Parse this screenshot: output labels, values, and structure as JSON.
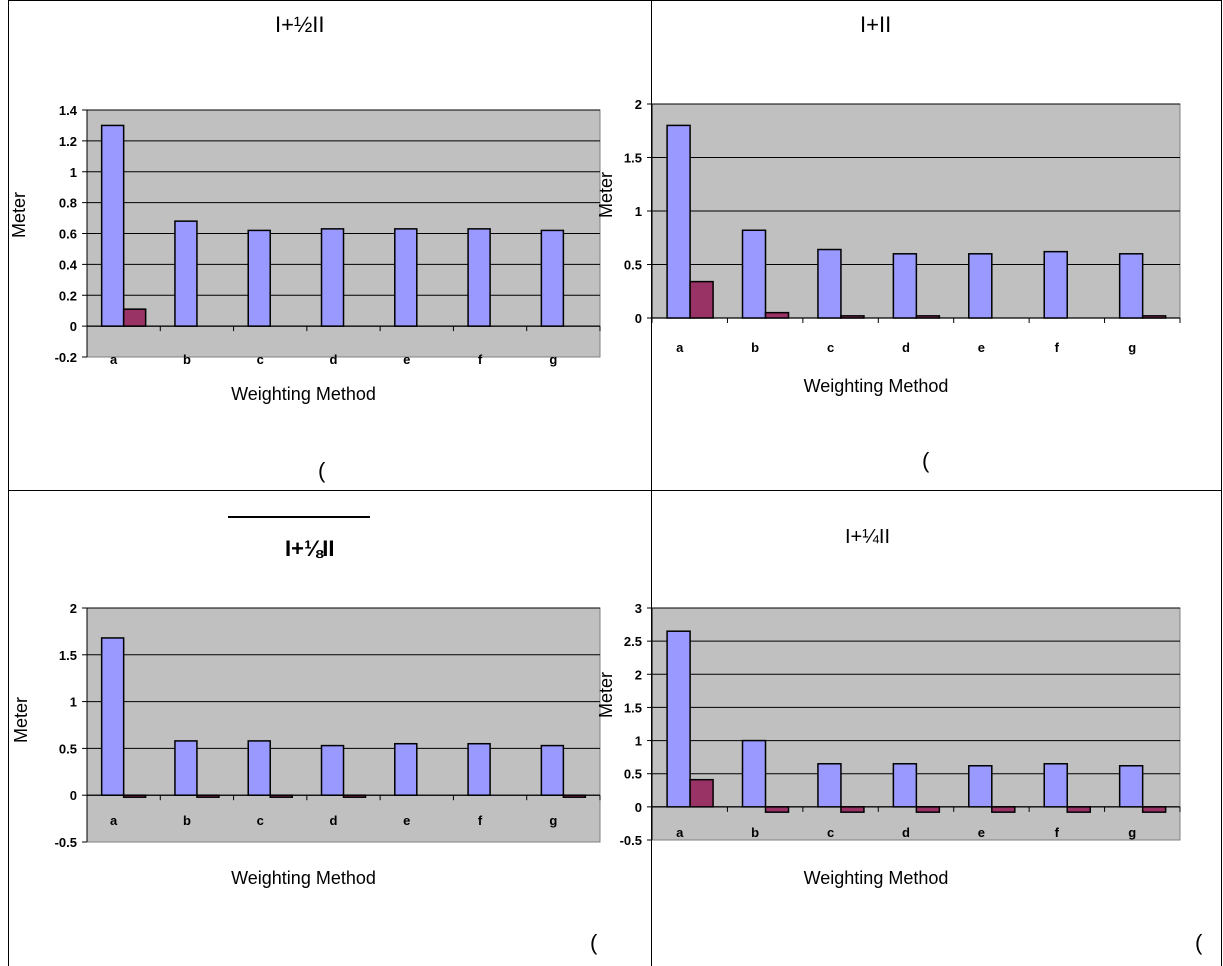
{
  "panels": [
    {
      "title": "I+½II",
      "paren": "("
    },
    {
      "title": "I+II",
      "paren": "("
    },
    {
      "title": "I+⅛II",
      "paren": "("
    },
    {
      "title": "I+¼II",
      "paren": "("
    }
  ],
  "colors": {
    "series1": "#9999ff",
    "series2": "#993366",
    "plot_bg": "#c0c0c0"
  },
  "chart_data": [
    {
      "type": "bar",
      "title": "I+½II",
      "xlabel": "Weighting Method",
      "ylabel": "Meter",
      "categories": [
        "a",
        "b",
        "c",
        "d",
        "e",
        "f",
        "g"
      ],
      "ylim": [
        -0.2,
        1.4
      ],
      "yticks": [
        "-0.2",
        "0",
        "0.2",
        "0.4",
        "0.6",
        "0.8",
        "1",
        "1.2",
        "1.4"
      ],
      "grid": true,
      "series": [
        {
          "values": [
            1.3,
            0.68,
            0.62,
            0.63,
            0.63,
            0.63,
            0.62
          ]
        },
        {
          "values": [
            0.11,
            0,
            0,
            0,
            0,
            0,
            0
          ]
        }
      ]
    },
    {
      "type": "bar",
      "title": "I+II",
      "xlabel": "Weighting Method",
      "ylabel": "Meter",
      "categories": [
        "a",
        "b",
        "c",
        "d",
        "e",
        "f",
        "g"
      ],
      "ylim": [
        0,
        2
      ],
      "yticks": [
        "0",
        "0.5",
        "1",
        "1.5",
        "2"
      ],
      "grid": true,
      "series": [
        {
          "values": [
            1.8,
            0.82,
            0.64,
            0.6,
            0.6,
            0.62,
            0.6
          ]
        },
        {
          "values": [
            0.34,
            0.05,
            0.02,
            0.02,
            0,
            0,
            0.02
          ]
        }
      ]
    },
    {
      "type": "bar",
      "title": "I+⅛II",
      "xlabel": "Weighting Method",
      "ylabel": "Meter",
      "categories": [
        "a",
        "b",
        "c",
        "d",
        "e",
        "f",
        "g"
      ],
      "ylim": [
        -0.5,
        2
      ],
      "yticks": [
        "-0.5",
        "0",
        "0.5",
        "1",
        "1.5",
        "2"
      ],
      "grid": true,
      "series": [
        {
          "values": [
            1.68,
            0.58,
            0.58,
            0.53,
            0.55,
            0.55,
            0.53
          ]
        },
        {
          "values": [
            -0.02,
            -0.02,
            -0.02,
            -0.02,
            0,
            0,
            -0.02
          ]
        }
      ]
    },
    {
      "type": "bar",
      "title": "I+¼II",
      "xlabel": "Weighting Method",
      "ylabel": "Meter",
      "categories": [
        "a",
        "b",
        "c",
        "d",
        "e",
        "f",
        "g"
      ],
      "ylim": [
        -0.5,
        3
      ],
      "yticks": [
        "-0.5",
        "0",
        "0.5",
        "1",
        "1.5",
        "2",
        "2.5",
        "3"
      ],
      "grid": true,
      "series": [
        {
          "values": [
            2.65,
            1.0,
            0.65,
            0.65,
            0.62,
            0.65,
            0.62
          ]
        },
        {
          "values": [
            0.41,
            -0.08,
            -0.08,
            -0.08,
            -0.08,
            -0.08,
            -0.08
          ]
        }
      ]
    }
  ]
}
